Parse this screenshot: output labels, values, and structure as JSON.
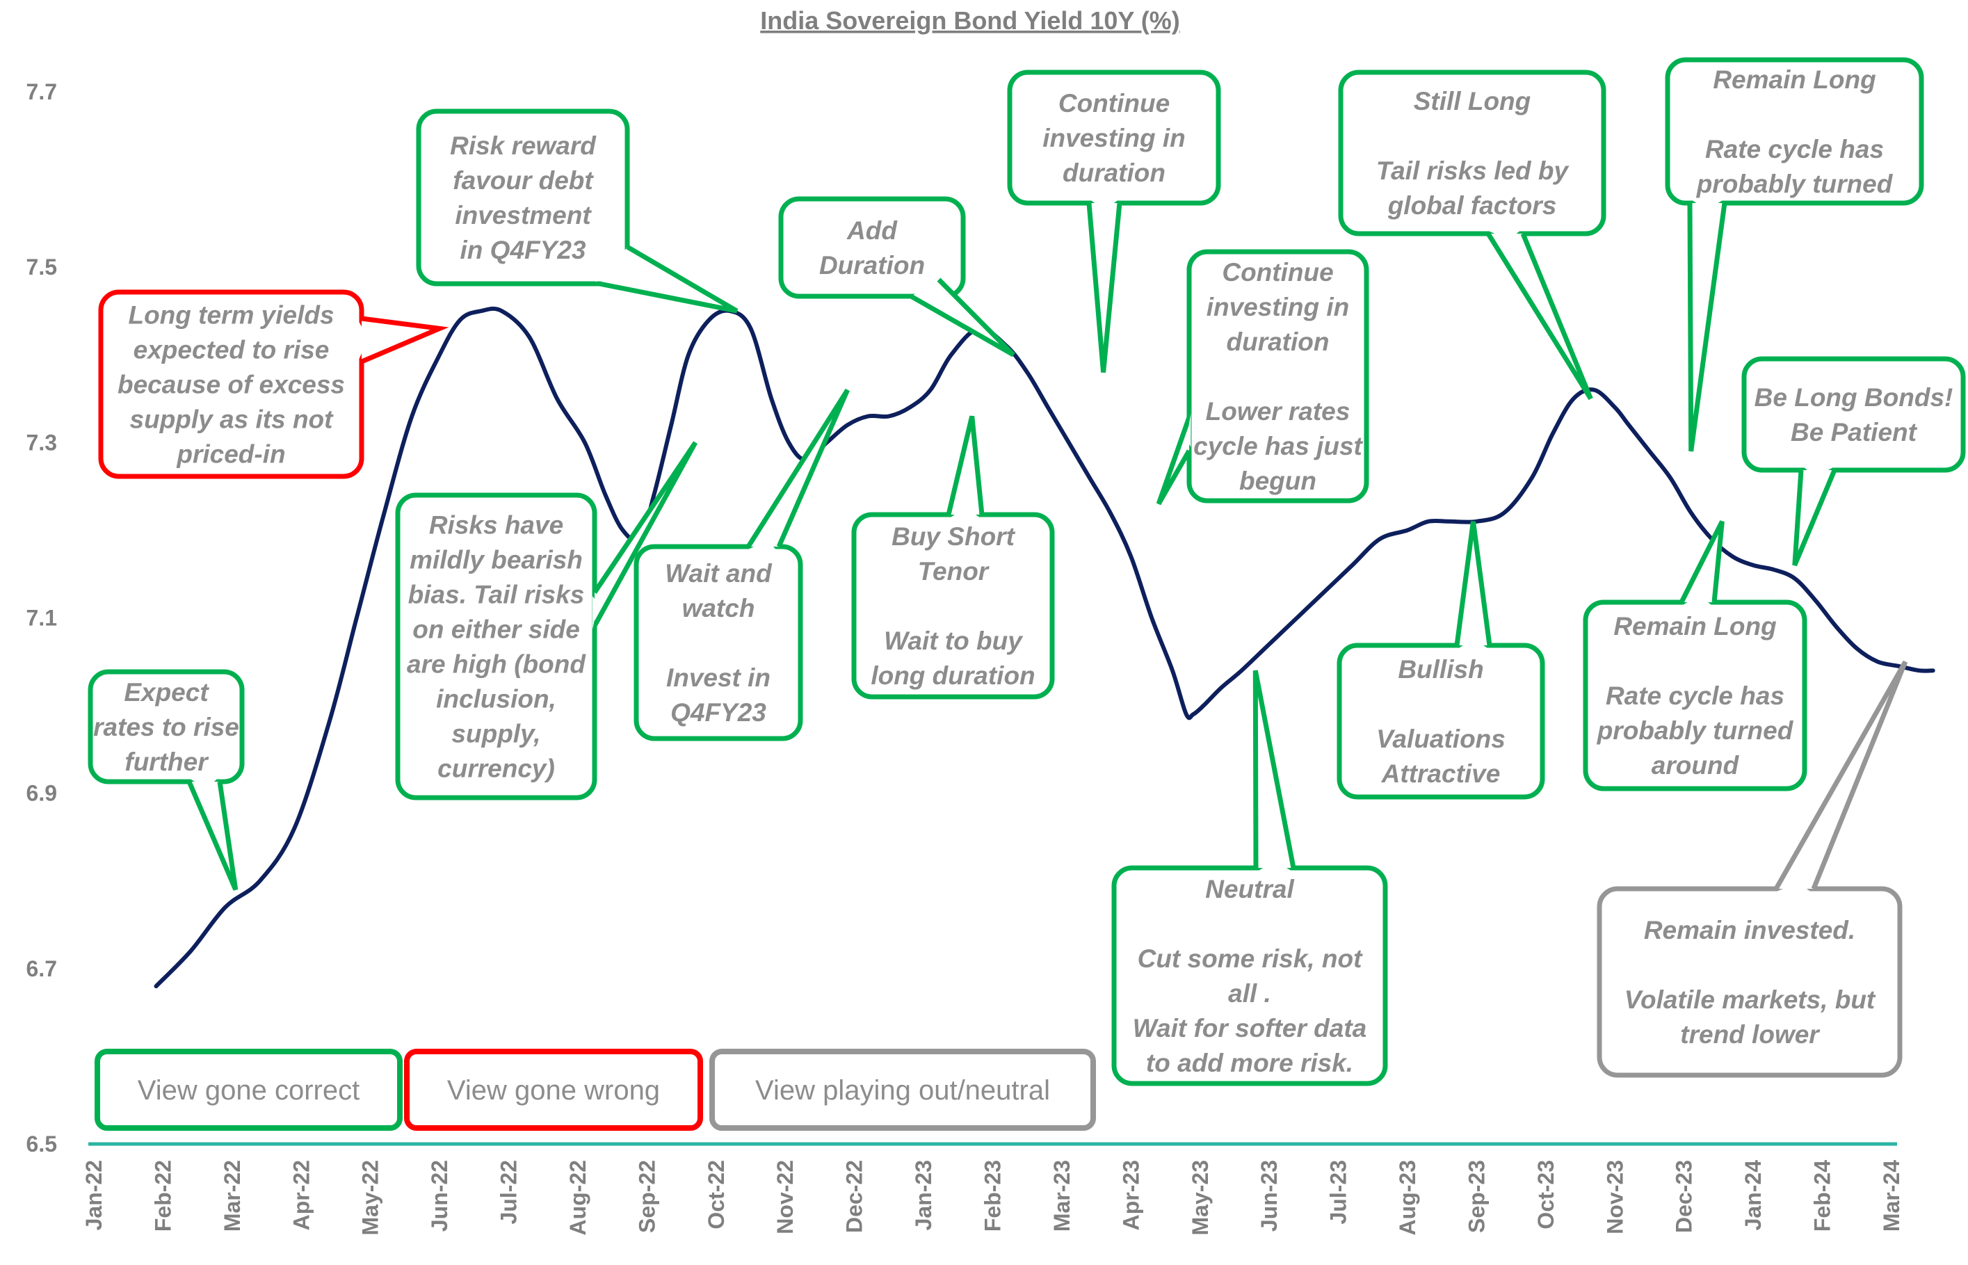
{
  "chart_data": {
    "type": "line",
    "title": "India Sovereign Bond Yield 10Y (%)",
    "xlabel": "",
    "ylabel": "",
    "ylim": [
      6.5,
      7.7
    ],
    "y_ticks": [
      "6.5",
      "6.7",
      "6.9",
      "7.1",
      "7.3",
      "7.5",
      "7.7"
    ],
    "x_ticks": [
      "Jan-22",
      "Feb-22",
      "Mar-22",
      "Apr-22",
      "May-22",
      "Jun-22",
      "Jul-22",
      "Aug-22",
      "Sep-22",
      "Oct-22",
      "Nov-22",
      "Dec-22",
      "Jan-23",
      "Feb-23",
      "Mar-23",
      "Apr-23",
      "May-23",
      "Jun-23",
      "Jul-23",
      "Aug-23",
      "Sep-23",
      "Oct-23",
      "Nov-23",
      "Dec-23",
      "Jan-24",
      "Feb-24",
      "Mar-24"
    ],
    "series": [
      {
        "x": [
          0.9,
          1.4,
          1.9,
          2.4,
          2.9,
          3.4,
          3.8,
          4.2,
          4.6,
          5.0,
          5.3,
          5.6,
          5.9,
          6.3,
          6.7,
          7.1,
          7.4,
          7.65,
          7.9,
          8.1,
          8.35,
          8.6,
          8.9,
          9.2,
          9.5,
          9.8,
          10.05,
          10.3,
          10.6,
          10.9,
          11.2,
          11.5,
          11.8,
          12.1,
          12.4,
          12.8,
          13.2,
          13.5,
          13.8,
          14.1,
          14.4,
          14.7,
          15.0,
          15.3,
          15.6,
          15.8,
          15.9,
          16.05,
          16.3,
          16.6,
          17.0,
          17.4,
          17.8,
          18.2,
          18.6,
          19.0,
          19.3,
          19.6,
          20.0,
          20.4,
          20.8,
          21.1,
          21.4,
          21.7,
          22.0,
          22.2,
          22.5,
          22.8,
          23.1,
          23.4,
          23.7,
          24.0,
          24.3,
          24.6,
          24.9,
          25.2,
          25.5,
          25.8,
          26.1,
          26.4,
          26.6
        ],
        "y": [
          6.68,
          6.72,
          6.77,
          6.8,
          6.86,
          6.98,
          7.1,
          7.22,
          7.33,
          7.4,
          7.44,
          7.45,
          7.45,
          7.42,
          7.35,
          7.3,
          7.24,
          7.2,
          7.19,
          7.24,
          7.32,
          7.4,
          7.44,
          7.45,
          7.43,
          7.35,
          7.3,
          7.28,
          7.3,
          7.32,
          7.33,
          7.33,
          7.34,
          7.36,
          7.4,
          7.43,
          7.41,
          7.38,
          7.34,
          7.3,
          7.26,
          7.22,
          7.17,
          7.1,
          7.04,
          6.99,
          6.99,
          7.0,
          7.02,
          7.04,
          7.07,
          7.1,
          7.13,
          7.16,
          7.19,
          7.2,
          7.21,
          7.21,
          7.21,
          7.22,
          7.26,
          7.31,
          7.35,
          7.36,
          7.34,
          7.32,
          7.29,
          7.26,
          7.22,
          7.19,
          7.17,
          7.16,
          7.155,
          7.145,
          7.12,
          7.09,
          7.065,
          7.05,
          7.045,
          7.04,
          7.04
        ],
        "color": "#0d1f5c"
      }
    ],
    "annotations": [
      {
        "id": "a1",
        "lines": [
          "Expect",
          "rates to rise",
          "further"
        ],
        "type": "correct",
        "point": [
          2.05,
          6.79
        ]
      },
      {
        "id": "a2",
        "lines": [
          "Long term yields",
          "expected to rise",
          "because of excess",
          "supply as its not",
          "priced-in"
        ],
        "type": "wrong",
        "point": [
          5.0,
          7.43
        ]
      },
      {
        "id": "a3",
        "lines": [
          "Risk reward",
          "favour debt",
          "investment",
          "in Q4FY23"
        ],
        "type": "correct",
        "point": [
          9.3,
          7.45
        ]
      },
      {
        "id": "a4",
        "lines": [
          "Risks have",
          "mildly bearish",
          "bias. Tail risks",
          "on either side",
          "are high (bond",
          "inclusion,",
          "supply,",
          "currency)"
        ],
        "type": "correct",
        "point": [
          8.7,
          7.3
        ]
      },
      {
        "id": "a5",
        "lines": [
          "Wait and",
          "watch",
          "",
          "Invest in",
          "Q4FY23"
        ],
        "type": "correct",
        "point": [
          10.9,
          7.36
        ]
      },
      {
        "id": "a6",
        "lines": [
          "Add",
          "Duration"
        ],
        "type": "correct",
        "point": [
          13.3,
          7.4
        ]
      },
      {
        "id": "a7",
        "lines": [
          "Buy Short",
          "Tenor",
          "",
          "Wait to buy",
          "long duration"
        ],
        "type": "correct",
        "point": [
          12.7,
          7.33
        ]
      },
      {
        "id": "a8",
        "lines": [
          "Continue",
          "investing in",
          "duration"
        ],
        "type": "correct",
        "point": [
          14.6,
          7.38
        ]
      },
      {
        "id": "a9",
        "lines": [
          "Continue",
          "investing in",
          "duration",
          "",
          "Lower rates",
          "cycle has just",
          "begun"
        ],
        "type": "correct",
        "point": [
          15.4,
          7.23
        ]
      },
      {
        "id": "a10",
        "lines": [
          "Neutral",
          "",
          "Cut some risk, not",
          "all .",
          "Wait for softer data",
          "to add more risk."
        ],
        "type": "correct",
        "point": [
          16.8,
          7.04
        ]
      },
      {
        "id": "a11",
        "lines": [
          "Bullish",
          "",
          "Valuations",
          "Attractive"
        ],
        "type": "correct",
        "point": [
          19.95,
          7.21
        ]
      },
      {
        "id": "a12",
        "lines": [
          "Still Long",
          "",
          "Tail risks led by",
          "global factors"
        ],
        "type": "correct",
        "point": [
          21.65,
          7.35
        ]
      },
      {
        "id": "a13",
        "lines": [
          "Remain Long",
          "",
          "Rate cycle has",
          "probably turned"
        ],
        "type": "correct",
        "point": [
          23.1,
          7.29
        ]
      },
      {
        "id": "a14",
        "lines": [
          "Remain Long",
          "",
          "Rate cycle has",
          "probably turned",
          "around"
        ],
        "type": "correct",
        "point": [
          23.55,
          7.21
        ]
      },
      {
        "id": "a15",
        "lines": [
          "Be Long Bonds!",
          "Be Patient"
        ],
        "type": "correct",
        "point": [
          24.6,
          7.16
        ]
      },
      {
        "id": "a16",
        "lines": [
          "Remain invested.",
          "",
          "Volatile markets, but",
          "trend lower"
        ],
        "type": "neutral",
        "point": [
          26.2,
          7.05
        ]
      }
    ],
    "legend": [
      {
        "label": "View gone correct",
        "type": "correct"
      },
      {
        "label": "View gone wrong",
        "type": "wrong"
      },
      {
        "label": "View playing out/neutral",
        "type": "neutral"
      }
    ],
    "legend_position": "bottom-left",
    "grid": false,
    "colors": {
      "correct": "#00b050",
      "wrong": "#ff0000",
      "neutral": "#969696",
      "line": "#0d1f5c",
      "axis": "#2ab4a0"
    }
  }
}
